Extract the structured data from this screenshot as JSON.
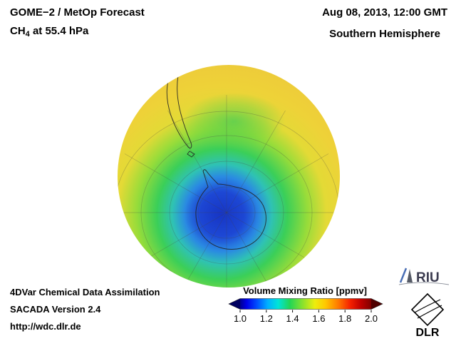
{
  "header": {
    "product": "GOME−2 / MetOp Forecast",
    "species": {
      "prefix": "CH",
      "sub": "4",
      "rest": " at 55.4 hPa"
    },
    "datetime": "Aug 08, 2013, 12:00 GMT",
    "hemisphere": "Southern Hemisphere"
  },
  "footer": {
    "line1": "4DVar Chemical Data Assimilation",
    "line2": "SACADA Version 2.4",
    "line3": "http://wdc.dlr.de"
  },
  "colorbar": {
    "title": "Volume Mixing Ratio [ppmv]",
    "ticks": [
      "1.0",
      "1.2",
      "1.4",
      "1.6",
      "1.8",
      "2.0"
    ],
    "min": 1.0,
    "max": 2.0,
    "arrow_left_color": "#000060",
    "arrow_right_color": "#500000",
    "gradient": [
      {
        "o": "0%",
        "c": "#000090"
      },
      {
        "o": "5%",
        "c": "#0000e8"
      },
      {
        "o": "13%",
        "c": "#0050ff"
      },
      {
        "o": "21%",
        "c": "#00b0ff"
      },
      {
        "o": "29%",
        "c": "#00e4d8"
      },
      {
        "o": "38%",
        "c": "#22d655"
      },
      {
        "o": "48%",
        "c": "#8ce22c"
      },
      {
        "o": "57%",
        "c": "#eded0e"
      },
      {
        "o": "65%",
        "c": "#ffc800"
      },
      {
        "o": "75%",
        "c": "#ff7800"
      },
      {
        "o": "84%",
        "c": "#f52000"
      },
      {
        "o": "92%",
        "c": "#c00000"
      },
      {
        "o": "100%",
        "c": "#800000"
      }
    ]
  },
  "globe": {
    "gradient": [
      {
        "o": "0%",
        "c": "#1a3ccc"
      },
      {
        "o": "14%",
        "c": "#1e4ad8"
      },
      {
        "o": "24%",
        "c": "#2a8ae2"
      },
      {
        "o": "32%",
        "c": "#2fc2b4"
      },
      {
        "o": "42%",
        "c": "#3bcf58"
      },
      {
        "o": "55%",
        "c": "#97dc3a"
      },
      {
        "o": "67%",
        "c": "#e3da36"
      },
      {
        "o": "82%",
        "c": "#eed238"
      },
      {
        "o": "100%",
        "c": "#edca3a"
      }
    ],
    "core": [
      {
        "o": "0%",
        "c": "#1634c4",
        "op": 0.85
      },
      {
        "o": "60%",
        "c": "#1a40cc",
        "op": 0.4
      },
      {
        "o": "100%",
        "c": "#1a40cc",
        "op": 0
      }
    ],
    "green_patch": [
      {
        "o": "0%",
        "c": "#45cc55",
        "op": 0.7
      },
      {
        "o": "60%",
        "c": "#57d148",
        "op": 0.35
      },
      {
        "o": "100%",
        "c": "#57d148",
        "op": 0
      }
    ]
  },
  "logos": {
    "riu": "RIU",
    "dlr": "DLR"
  }
}
